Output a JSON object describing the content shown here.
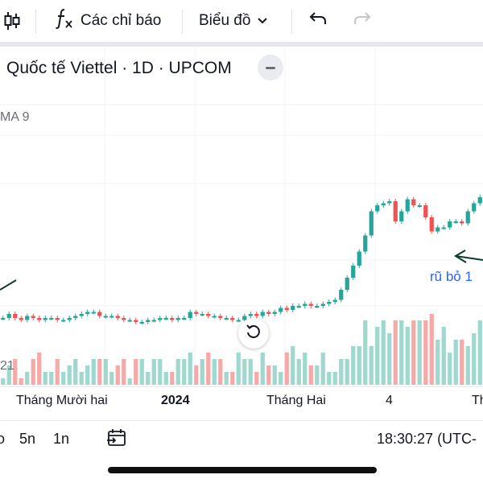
{
  "toolbar": {
    "indicators_label": "Các chỉ báo",
    "chart_type_label": "Biểu đồ",
    "icons": [
      "candles-icon",
      "function-icon",
      "chevron-down-icon",
      "undo-icon",
      "redo-icon"
    ]
  },
  "legend": {
    "title": "Quốc tế Viettel · 1D · UPCOM"
  },
  "indicators": {
    "ma_label": "MA 9",
    "volume_value": "21"
  },
  "annotation": {
    "text": "rũ bỏ 1"
  },
  "xaxis": {
    "labels": [
      "Tháng Mười hai",
      "2024",
      "Tháng Hai",
      "4",
      "Th"
    ]
  },
  "bottom": {
    "ranges": [
      "5n",
      "1n"
    ],
    "time": "18:30:27 (UTC-"
  },
  "colors": {
    "up": "#26a69a",
    "down": "#ef5350",
    "up_volume": "#9fd8cf",
    "down_volume": "#f7a9a7",
    "annotation": "#2962ff"
  },
  "chart_data": {
    "type": "candlestick",
    "opens": [
      90,
      90,
      92,
      90,
      89,
      91,
      90,
      89,
      90,
      90,
      89,
      89,
      90,
      91,
      92,
      93,
      93,
      91,
      91,
      91,
      90,
      89,
      89,
      88,
      88,
      89,
      89,
      90,
      90,
      89,
      90,
      90,
      93,
      92,
      92,
      91,
      91,
      90,
      90,
      89,
      89,
      91,
      92,
      91,
      93,
      92,
      93,
      95,
      94,
      96,
      96,
      97,
      96,
      96,
      97,
      98,
      99,
      104,
      110,
      116,
      123,
      131,
      143,
      146,
      147,
      148,
      138,
      143,
      149,
      146,
      146,
      140,
      133,
      135,
      135,
      138,
      138,
      137,
      143,
      147
    ],
    "closes": [
      90,
      92,
      90,
      89,
      91,
      90,
      89,
      90,
      90,
      89,
      89,
      90,
      91,
      92,
      93,
      93,
      91,
      91,
      91,
      90,
      89,
      89,
      88,
      88,
      89,
      89,
      90,
      90,
      89,
      90,
      90,
      93,
      92,
      92,
      91,
      91,
      90,
      90,
      89,
      89,
      91,
      92,
      91,
      93,
      92,
      93,
      95,
      94,
      96,
      96,
      97,
      96,
      96,
      97,
      98,
      99,
      104,
      110,
      116,
      123,
      131,
      143,
      146,
      147,
      148,
      138,
      143,
      149,
      146,
      146,
      140,
      133,
      135,
      135,
      138,
      138,
      137,
      143,
      147,
      150
    ],
    "volumes": [
      1,
      3,
      4,
      1,
      2,
      4,
      5,
      2,
      2,
      4,
      2,
      3,
      4,
      2,
      3,
      4,
      4,
      4,
      2,
      3,
      4,
      1,
      4,
      4,
      2,
      4,
      4,
      2,
      2,
      4,
      4,
      5,
      3,
      4,
      5,
      4,
      4,
      2,
      2,
      5,
      4,
      4,
      2,
      5,
      3,
      3,
      2,
      5,
      6,
      4,
      5,
      3,
      3,
      5,
      2,
      2,
      4,
      4,
      6,
      6,
      10,
      6,
      9,
      10,
      8,
      10,
      10,
      9,
      10,
      10,
      10,
      11,
      7,
      9,
      5,
      7,
      7,
      6,
      8,
      10
    ]
  }
}
